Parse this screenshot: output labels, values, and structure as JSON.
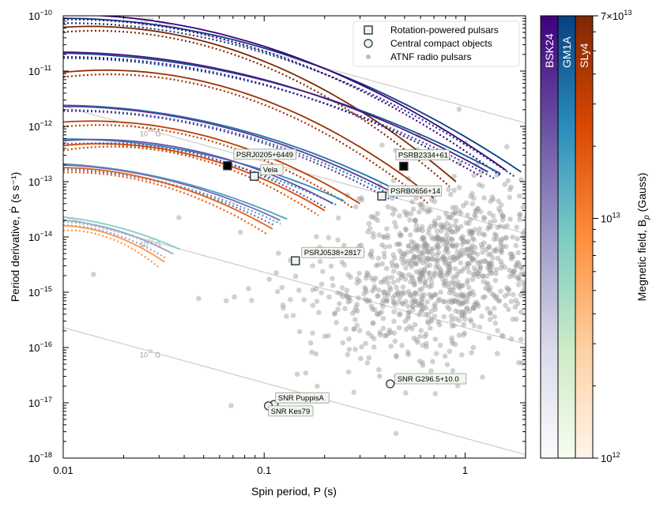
{
  "chart_data": {
    "type": "scatter",
    "xlabel": "Spin period, P  (s)",
    "ylabel": "Period derivative, Ṗ  (s s⁻¹)",
    "xscale": "log",
    "yscale": "log",
    "xlim": [
      0.01,
      2.0
    ],
    "ylim": [
      1e-18,
      1e-10
    ],
    "xticks": [
      {
        "v": 0.01,
        "label": "0.01"
      },
      {
        "v": 0.1,
        "label": "0.1"
      },
      {
        "v": 1,
        "label": "1"
      }
    ],
    "yticks": [
      {
        "e": -10,
        "label": "10",
        "sup": "−10"
      },
      {
        "e": -11,
        "label": "10",
        "sup": "−11"
      },
      {
        "e": -12,
        "label": "10",
        "sup": "−12"
      },
      {
        "e": -13,
        "label": "10",
        "sup": "−13"
      },
      {
        "e": -14,
        "label": "10",
        "sup": "−14"
      },
      {
        "e": -15,
        "label": "10",
        "sup": "−15"
      },
      {
        "e": -16,
        "label": "10",
        "sup": "−16"
      },
      {
        "e": -17,
        "label": "10",
        "sup": "−17"
      },
      {
        "e": -18,
        "label": "10",
        "sup": "−18"
      }
    ],
    "legend": {
      "placement": "top-right",
      "entries": [
        {
          "marker": "square",
          "label": "Rotation-powered pulsars"
        },
        {
          "marker": "circle",
          "label": "Central compact objects"
        },
        {
          "marker": "dot",
          "label": "ATNF radio pulsars"
        }
      ]
    },
    "b_field_lines": {
      "pdot_at_1s_for_1e11G": 2.3e-18,
      "lines": [
        {
          "B": 100000000000000.0,
          "label": "10",
          "sup": "14",
          "suffix": " G",
          "label_P": 0.022
        },
        {
          "B": 10000000000000.0,
          "label": "10",
          "sup": "13",
          "suffix": " G",
          "label_P": 0.022
        },
        {
          "B": 1000000000000.0,
          "label": "10",
          "sup": "12",
          "suffix": " G",
          "label_P": 0.022
        },
        {
          "B": 100000000000.0,
          "label": "10",
          "sup": "11",
          "suffix": " G",
          "label_P": 0.022
        }
      ],
      "color": "#d0d0d0"
    },
    "colorbar": {
      "label": "Megnetic field, B",
      "label_sub": "p",
      "label_unit": " (Gauss)",
      "range": [
        1000000000000.0,
        70000000000000.0
      ],
      "ticks": [
        {
          "v": 70000000000000.0,
          "label": "7×10",
          "sup": "13"
        },
        {
          "v": 10000000000000.0,
          "label": "10",
          "sup": "13"
        },
        {
          "v": 1000000000000.0,
          "label": "10",
          "sup": "12"
        }
      ],
      "eos": [
        {
          "name": "BSK24",
          "stops": [
            "#fcfbfd",
            "#dadaeb",
            "#9e9ac8",
            "#6a51a3",
            "#3f007d"
          ]
        },
        {
          "name": "GM1A",
          "stops": [
            "#f7fcf0",
            "#ccebc5",
            "#7bccc4",
            "#2b8cbe",
            "#084081"
          ]
        },
        {
          "name": "SLy4",
          "stops": [
            "#fff5eb",
            "#fdd0a2",
            "#fd8d3c",
            "#d94801",
            "#7f2704"
          ]
        }
      ]
    },
    "dotted_factor": 0.82,
    "tracks": [
      {
        "eos": "GM1A",
        "B": 70000000000000.0,
        "pts": [
          [
            0.01,
            9e-11
          ],
          [
            0.1,
            2.6e-11
          ],
          [
            1.9,
            1.5e-13
          ]
        ]
      },
      {
        "eos": "BSK24",
        "B": 70000000000000.0,
        "pts": [
          [
            0.01,
            1.05e-10
          ],
          [
            0.1,
            2.8e-11
          ],
          [
            1.6,
            1.6e-13
          ]
        ]
      },
      {
        "eos": "SLy4",
        "B": 70000000000000.0,
        "pts": [
          [
            0.01,
            6.2e-11
          ],
          [
            0.1,
            1.5e-11
          ],
          [
            0.9,
            1e-13
          ]
        ]
      },
      {
        "eos": "GM1A",
        "B": 50000000000000.0,
        "pts": [
          [
            0.01,
            2.1e-11
          ],
          [
            0.1,
            6.8e-12
          ],
          [
            1.5,
            1.4e-13
          ]
        ]
      },
      {
        "eos": "BSK24",
        "B": 50000000000000.0,
        "pts": [
          [
            0.01,
            2.2e-11
          ],
          [
            0.1,
            7e-12
          ],
          [
            1.3,
            1.5e-13
          ]
        ]
      },
      {
        "eos": "SLy4",
        "B": 50000000000000.0,
        "pts": [
          [
            0.01,
            9.5e-12
          ],
          [
            0.1,
            3e-12
          ],
          [
            0.7,
            5e-14
          ]
        ]
      },
      {
        "eos": "GM1A",
        "B": 30000000000000.0,
        "pts": [
          [
            0.01,
            2.4e-12
          ],
          [
            0.1,
            6.5e-13
          ],
          [
            0.5,
            6e-14
          ]
        ]
      },
      {
        "eos": "BSK24",
        "B": 30000000000000.0,
        "pts": [
          [
            0.01,
            2.3e-12
          ],
          [
            0.1,
            6e-13
          ],
          [
            0.45,
            6e-14
          ]
        ]
      },
      {
        "eos": "SLy4",
        "B": 30000000000000.0,
        "pts": [
          [
            0.01,
            1.2e-12
          ],
          [
            0.1,
            3e-13
          ],
          [
            0.3,
            4e-14
          ]
        ]
      },
      {
        "eos": "GM1A",
        "B": 20000000000000.0,
        "pts": [
          [
            0.01,
            5.9e-13
          ],
          [
            0.1,
            1.6e-13
          ],
          [
            0.25,
            4.5e-14
          ]
        ]
      },
      {
        "eos": "BSK24",
        "B": 20000000000000.0,
        "pts": [
          [
            0.01,
            5.5e-13
          ],
          [
            0.1,
            1.5e-13
          ],
          [
            0.22,
            4e-14
          ]
        ]
      },
      {
        "eos": "SLy4",
        "B": 20000000000000.0,
        "pts": [
          [
            0.01,
            4.5e-13
          ],
          [
            0.1,
            1.1e-13
          ],
          [
            0.2,
            3e-14
          ]
        ]
      },
      {
        "eos": "GM1A",
        "B": 13000000000000.0,
        "pts": [
          [
            0.01,
            2.1e-13
          ],
          [
            0.05,
            7.5e-14
          ],
          [
            0.13,
            2.1e-14
          ]
        ]
      },
      {
        "eos": "BSK24",
        "B": 13000000000000.0,
        "pts": [
          [
            0.01,
            2e-13
          ],
          [
            0.05,
            7e-14
          ],
          [
            0.12,
            2e-14
          ]
        ]
      },
      {
        "eos": "SLy4",
        "B": 13000000000000.0,
        "pts": [
          [
            0.01,
            1.8e-13
          ],
          [
            0.05,
            5.5e-14
          ],
          [
            0.11,
            1.4e-14
          ]
        ]
      },
      {
        "eos": "GM1A",
        "B": 5000000000000.0,
        "pts": [
          [
            0.01,
            2.3e-14
          ],
          [
            0.02,
            1.4e-14
          ],
          [
            0.038,
            6e-15
          ]
        ]
      },
      {
        "eos": "BSK24",
        "B": 5000000000000.0,
        "pts": [
          [
            0.01,
            2e-14
          ],
          [
            0.02,
            1.2e-14
          ],
          [
            0.035,
            5e-15
          ]
        ]
      },
      {
        "eos": "SLy4",
        "B": 5000000000000.0,
        "pts": [
          [
            0.01,
            1.6e-14
          ],
          [
            0.02,
            9e-15
          ],
          [
            0.032,
            3.5e-15
          ]
        ]
      }
    ],
    "rotation_powered_pulsars": [
      {
        "name": "PSRJ0205+6449",
        "P": 0.0657,
        "Pdot": 1.94e-13,
        "filled": true
      },
      {
        "name": "Vela",
        "P": 0.0893,
        "Pdot": 1.25e-13,
        "filled": false
      },
      {
        "name": "PSRB2334+61",
        "P": 0.495,
        "Pdot": 1.9e-13,
        "filled": true
      },
      {
        "name": "PSRB0656+14",
        "P": 0.385,
        "Pdot": 5.5e-14,
        "filled": false
      },
      {
        "name": "PSRJ0538+2817",
        "P": 0.143,
        "Pdot": 3.7e-15,
        "filled": false
      }
    ],
    "central_compact_objects": [
      {
        "name": "SNR G296.5+10.0",
        "P": 0.424,
        "Pdot": 2.2e-17
      },
      {
        "name": "SNR PuppisA",
        "P": 0.112,
        "Pdot": 9.3e-18
      },
      {
        "name": "SNR Kes79",
        "P": 0.105,
        "Pdot": 8.8e-18
      }
    ],
    "atnf_population": {
      "count": 1100,
      "log_P_mean": -0.12,
      "log_P_sd": 0.3,
      "log_Pdot_mean": -14.6,
      "log_Pdot_sd": 0.75,
      "color": "#9a9a9a"
    }
  }
}
